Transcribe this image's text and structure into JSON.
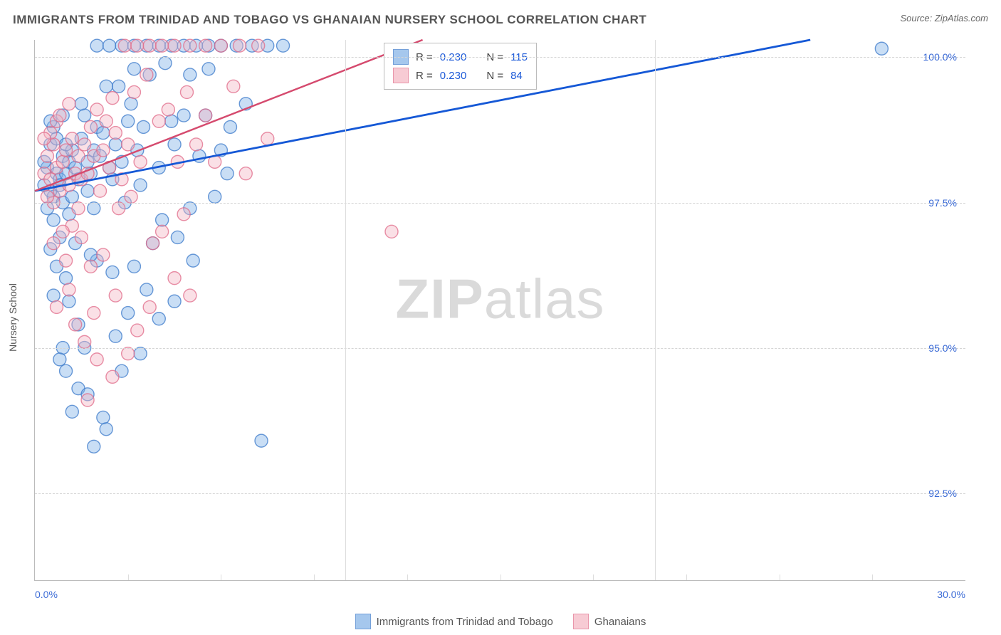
{
  "header": {
    "title": "IMMIGRANTS FROM TRINIDAD AND TOBAGO VS GHANAIAN NURSERY SCHOOL CORRELATION CHART",
    "source_label": "Source: ZipAtlas.com"
  },
  "watermark": {
    "prefix": "ZIP",
    "suffix": "atlas"
  },
  "axes": {
    "y_label": "Nursery School",
    "x_min": 0.0,
    "x_max": 30.0,
    "y_min": 91.0,
    "y_max": 100.3,
    "y_ticks": [
      92.5,
      95.0,
      97.5,
      100.0
    ],
    "y_tick_labels": [
      "92.5%",
      "95.0%",
      "97.5%",
      "100.0%"
    ],
    "x_ticks": [
      0.0,
      30.0
    ],
    "x_tick_labels": [
      "0.0%",
      "30.0%"
    ],
    "x_minor_ticks_count": 9,
    "grid_color": "#d5d5d5",
    "axis_color": "#bbbbbb",
    "tick_label_color": "#3b6bd6"
  },
  "series": [
    {
      "id": "trinidad",
      "label": "Immigrants from Trinidad and Tobago",
      "fill": "#7fb0e6",
      "stroke": "#3a78c9",
      "R": "0.230",
      "N": "115",
      "trend": {
        "x1": 0.0,
        "y1": 97.7,
        "x2": 25.0,
        "y2": 100.3,
        "stroke": "#1558d6"
      },
      "points": [
        [
          0.4,
          98.1
        ],
        [
          0.6,
          97.6
        ],
        [
          0.5,
          98.5
        ],
        [
          0.7,
          98.0
        ],
        [
          0.8,
          97.9
        ],
        [
          0.9,
          98.3
        ],
        [
          0.3,
          98.2
        ],
        [
          0.5,
          97.7
        ],
        [
          0.6,
          98.8
        ],
        [
          0.4,
          97.4
        ],
        [
          0.7,
          98.6
        ],
        [
          0.8,
          97.8
        ],
        [
          1.0,
          98.0
        ],
        [
          1.1,
          98.2
        ],
        [
          0.9,
          97.5
        ],
        [
          1.2,
          98.4
        ],
        [
          0.5,
          98.9
        ],
        [
          0.6,
          97.2
        ],
        [
          0.9,
          99.0
        ],
        [
          0.3,
          97.8
        ],
        [
          1.3,
          98.1
        ],
        [
          1.5,
          98.6
        ],
        [
          1.4,
          97.9
        ],
        [
          1.6,
          99.0
        ],
        [
          1.2,
          97.6
        ],
        [
          1.0,
          98.5
        ],
        [
          1.7,
          98.2
        ],
        [
          1.8,
          98.0
        ],
        [
          1.9,
          98.4
        ],
        [
          2.0,
          98.8
        ],
        [
          1.1,
          97.3
        ],
        [
          1.3,
          96.8
        ],
        [
          1.5,
          99.2
        ],
        [
          1.7,
          97.7
        ],
        [
          1.9,
          97.4
        ],
        [
          2.1,
          98.3
        ],
        [
          2.2,
          98.7
        ],
        [
          2.4,
          98.1
        ],
        [
          2.3,
          99.5
        ],
        [
          2.5,
          97.9
        ],
        [
          2.0,
          96.5
        ],
        [
          0.8,
          96.9
        ],
        [
          0.7,
          96.4
        ],
        [
          1.0,
          96.2
        ],
        [
          1.1,
          95.8
        ],
        [
          1.4,
          95.4
        ],
        [
          1.6,
          95.0
        ],
        [
          1.8,
          96.6
        ],
        [
          0.5,
          96.7
        ],
        [
          0.6,
          95.9
        ],
        [
          2.6,
          98.5
        ],
        [
          2.8,
          98.2
        ],
        [
          3.0,
          98.9
        ],
        [
          3.2,
          99.8
        ],
        [
          3.4,
          97.8
        ],
        [
          3.1,
          99.2
        ],
        [
          3.3,
          98.4
        ],
        [
          2.7,
          99.5
        ],
        [
          2.9,
          97.5
        ],
        [
          3.5,
          98.8
        ],
        [
          3.7,
          99.7
        ],
        [
          4.0,
          98.1
        ],
        [
          4.2,
          99.9
        ],
        [
          4.5,
          98.5
        ],
        [
          4.8,
          99.0
        ],
        [
          5.0,
          99.7
        ],
        [
          5.3,
          98.3
        ],
        [
          5.6,
          99.8
        ],
        [
          5.0,
          97.4
        ],
        [
          4.4,
          98.9
        ],
        [
          1.0,
          94.6
        ],
        [
          1.4,
          94.3
        ],
        [
          2.2,
          93.8
        ],
        [
          2.6,
          95.2
        ],
        [
          1.7,
          94.2
        ],
        [
          1.2,
          93.9
        ],
        [
          4.0,
          95.5
        ],
        [
          3.6,
          96.0
        ],
        [
          3.0,
          95.6
        ],
        [
          0.9,
          95.0
        ],
        [
          2.0,
          100.2
        ],
        [
          2.4,
          100.2
        ],
        [
          2.8,
          100.2
        ],
        [
          3.2,
          100.2
        ],
        [
          3.6,
          100.2
        ],
        [
          4.0,
          100.2
        ],
        [
          4.4,
          100.2
        ],
        [
          4.8,
          100.2
        ],
        [
          5.2,
          100.2
        ],
        [
          5.6,
          100.2
        ],
        [
          6.0,
          100.2
        ],
        [
          6.5,
          100.2
        ],
        [
          7.0,
          100.2
        ],
        [
          7.3,
          93.4
        ],
        [
          6.2,
          98.0
        ],
        [
          1.9,
          93.3
        ],
        [
          2.3,
          93.6
        ],
        [
          0.8,
          94.8
        ],
        [
          2.5,
          96.3
        ],
        [
          3.8,
          96.8
        ],
        [
          3.2,
          96.4
        ],
        [
          4.6,
          96.9
        ],
        [
          3.4,
          94.9
        ],
        [
          4.1,
          97.2
        ],
        [
          4.5,
          95.8
        ],
        [
          5.1,
          96.5
        ],
        [
          5.5,
          99.0
        ],
        [
          6.0,
          98.4
        ],
        [
          7.5,
          100.2
        ],
        [
          6.8,
          99.2
        ],
        [
          6.3,
          98.8
        ],
        [
          8.0,
          100.2
        ],
        [
          5.8,
          97.6
        ],
        [
          2.8,
          94.6
        ],
        [
          27.3,
          100.15
        ]
      ]
    },
    {
      "id": "ghanaians",
      "label": "Ghanaians",
      "fill": "#f4b6c3",
      "stroke": "#e06a88",
      "R": "0.230",
      "N": "84",
      "trend": {
        "x1": 0.0,
        "y1": 97.7,
        "x2": 12.5,
        "y2": 100.3,
        "stroke": "#d54a6e"
      },
      "points": [
        [
          0.3,
          98.0
        ],
        [
          0.5,
          97.9
        ],
        [
          0.4,
          98.3
        ],
        [
          0.6,
          98.5
        ],
        [
          0.7,
          98.1
        ],
        [
          0.8,
          97.7
        ],
        [
          0.5,
          98.7
        ],
        [
          0.6,
          97.5
        ],
        [
          0.9,
          98.2
        ],
        [
          0.4,
          97.6
        ],
        [
          1.0,
          98.4
        ],
        [
          1.1,
          97.8
        ],
        [
          1.2,
          98.6
        ],
        [
          0.7,
          98.9
        ],
        [
          1.3,
          98.0
        ],
        [
          1.4,
          98.3
        ],
        [
          0.8,
          99.0
        ],
        [
          0.3,
          98.6
        ],
        [
          1.5,
          97.9
        ],
        [
          1.1,
          99.2
        ],
        [
          1.6,
          98.5
        ],
        [
          1.7,
          98.0
        ],
        [
          1.8,
          98.8
        ],
        [
          1.9,
          98.3
        ],
        [
          2.0,
          99.1
        ],
        [
          2.1,
          97.7
        ],
        [
          2.2,
          98.4
        ],
        [
          2.3,
          98.9
        ],
        [
          1.4,
          97.4
        ],
        [
          1.2,
          97.1
        ],
        [
          0.9,
          97.0
        ],
        [
          0.6,
          96.8
        ],
        [
          1.0,
          96.5
        ],
        [
          1.5,
          96.9
        ],
        [
          1.8,
          96.4
        ],
        [
          1.1,
          96.0
        ],
        [
          0.7,
          95.7
        ],
        [
          1.3,
          95.4
        ],
        [
          1.6,
          95.1
        ],
        [
          1.9,
          95.6
        ],
        [
          2.4,
          98.1
        ],
        [
          2.6,
          98.7
        ],
        [
          2.8,
          97.9
        ],
        [
          3.0,
          98.5
        ],
        [
          3.2,
          99.4
        ],
        [
          3.4,
          98.2
        ],
        [
          3.6,
          99.7
        ],
        [
          3.1,
          97.6
        ],
        [
          2.5,
          99.3
        ],
        [
          2.7,
          97.4
        ],
        [
          4.0,
          98.9
        ],
        [
          4.3,
          99.1
        ],
        [
          4.6,
          98.2
        ],
        [
          4.9,
          99.4
        ],
        [
          5.2,
          98.5
        ],
        [
          5.5,
          99.0
        ],
        [
          3.8,
          96.8
        ],
        [
          4.1,
          97.0
        ],
        [
          4.5,
          96.2
        ],
        [
          4.8,
          97.3
        ],
        [
          2.0,
          94.8
        ],
        [
          2.5,
          94.5
        ],
        [
          1.7,
          94.1
        ],
        [
          3.0,
          94.9
        ],
        [
          3.3,
          95.3
        ],
        [
          3.7,
          95.7
        ],
        [
          11.5,
          97.0
        ],
        [
          2.6,
          95.9
        ],
        [
          2.2,
          96.6
        ],
        [
          5.0,
          95.9
        ],
        [
          2.9,
          100.2
        ],
        [
          3.3,
          100.2
        ],
        [
          3.7,
          100.2
        ],
        [
          4.1,
          100.2
        ],
        [
          4.5,
          100.2
        ],
        [
          5.0,
          100.2
        ],
        [
          5.5,
          100.2
        ],
        [
          6.0,
          100.2
        ],
        [
          6.6,
          100.2
        ],
        [
          7.2,
          100.2
        ],
        [
          5.8,
          98.2
        ],
        [
          6.4,
          99.5
        ],
        [
          6.8,
          98.0
        ],
        [
          7.5,
          98.6
        ]
      ]
    }
  ],
  "legend_top": {
    "rows": [
      {
        "swatch_series": 0,
        "R_label": "R =",
        "N_label": "N ="
      },
      {
        "swatch_series": 1,
        "R_label": "R =",
        "N_label": "N ="
      }
    ]
  },
  "style": {
    "point_radius": 9,
    "plot_bg": "#ffffff"
  }
}
